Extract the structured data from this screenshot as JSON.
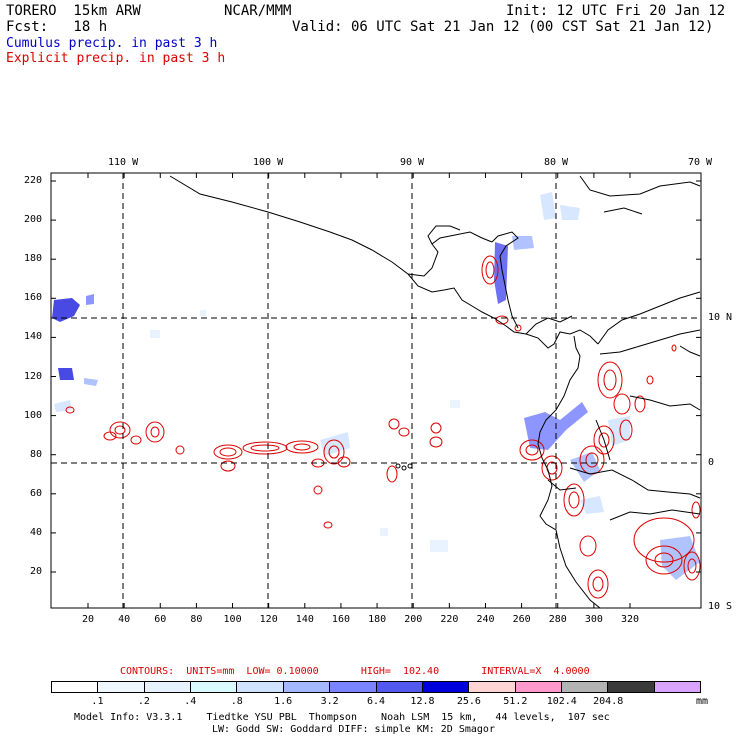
{
  "header": {
    "model": "TORERO  15km ARW",
    "org": "NCAR/MMM",
    "init": "Init: 12 UTC Fri 20 Jan 12",
    "fcst": "Fcst:   18 h",
    "valid": "Valid: 06 UTC Sat 21 Jan 12 (00 CST Sat 21 Jan 12)",
    "cumulus": "Cumulus precip. in past 3 h",
    "explicit": "Explicit precip. in past 3 h"
  },
  "colors": {
    "cumulus": "#0000cc",
    "explicit": "#dd0000",
    "legend_bins": [
      "#ffffff",
      "#f0f8ff",
      "#e6f2ff",
      "#d9fbff",
      "#cfe3ff",
      "#a3b8ff",
      "#7a84ff",
      "#5358ee",
      "#0000dd",
      "#ffd4d4",
      "#ff99cc",
      "#b3b3b3",
      "#3a3a3a",
      "#d9a3ff"
    ]
  },
  "map": {
    "lon_labels": [
      "110 W",
      "100 W",
      "90 W",
      "80 W",
      "70 W"
    ],
    "lat_labels": [
      "10 N",
      "0",
      "10 S"
    ],
    "y_ticks": [
      "220",
      "200",
      "180",
      "160",
      "140",
      "120",
      "100",
      "80",
      "60",
      "40",
      "20"
    ],
    "x_ticks": [
      "20",
      "40",
      "60",
      "80",
      "100",
      "120",
      "140",
      "160",
      "180",
      "200",
      "220",
      "240",
      "260",
      "280",
      "300",
      "320"
    ]
  },
  "contour_info": {
    "text": "CONTOURS:  UNITS=mm  LOW= 0.10000       HIGH=  102.40       INTERVAL=X  4.0000"
  },
  "legend": {
    "values": [
      ".1",
      ".2",
      ".4",
      ".8",
      "1.6",
      "3.2",
      "6.4",
      "12.8",
      "25.6",
      "51.2",
      "102.4",
      "204.8"
    ],
    "unit": "mm"
  },
  "footer": {
    "line1": "Model Info: V3.3.1    Tiedtke YSU PBL  Thompson    Noah LSM  15 km,   44 levels,  107 sec",
    "line2": "LW: Godd SW: Goddard DIFF: simple KM: 2D Smagor"
  }
}
